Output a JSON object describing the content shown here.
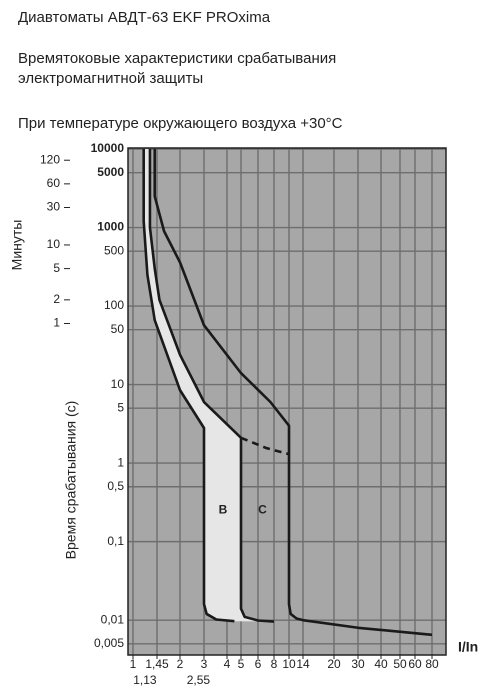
{
  "chart_data": {
    "type": "line",
    "title": "Диавтоматы АВДТ-63 EKF PROxima",
    "subtitle": [
      "Времятоковые характеристики срабатывания",
      "электромагнитной защиты"
    ],
    "note": "При температуре окружающего воздуха +30°C",
    "ylabel": "Время срабатывания (с)",
    "y2label": "Минуты",
    "xlabel": "I/In",
    "annotations": [
      {
        "text": "B",
        "x": 3.8,
        "y": 0.25
      },
      {
        "text": "C",
        "x": 6.5,
        "y": 0.25
      }
    ],
    "log_y": true,
    "grid": true,
    "background": "#a7a7a7",
    "fill_color": "#e6e6e6",
    "ylim": [
      0.0036,
      10300
    ],
    "yticks": [
      10000,
      5000,
      1000,
      500,
      100,
      50,
      10,
      5,
      1,
      {
        "value": 0.5,
        "label": "0,5"
      },
      {
        "value": 0.1,
        "label": "0,1"
      },
      {
        "value": 0.01,
        "label": "0,01"
      },
      {
        "value": 0.005,
        "label": "0,005"
      }
    ],
    "y2lim": [
      6e-05,
      171.7
    ],
    "y2ticks": [
      120,
      60,
      30,
      10,
      5,
      2,
      1
    ],
    "xticks": [
      1,
      {
        "value": 1.45,
        "label": "1,45"
      },
      2,
      3,
      4,
      5,
      6,
      8,
      10,
      14,
      20,
      30,
      40,
      50,
      60,
      80
    ],
    "xtick_notes": [
      {
        "value": 1.13,
        "label": "1,13"
      },
      {
        "value": 2.55,
        "label": "2,55"
      }
    ],
    "series": [
      {
        "color": "#1a1a1a",
        "x": [
          1.18,
          1.18,
          1.25,
          1.4,
          2,
          3,
          3,
          3.1,
          3.5,
          4.5
        ],
        "values": [
          10000,
          1200,
          250,
          66,
          8.5,
          2.8,
          0.016,
          0.012,
          0.0102,
          0.0097
        ]
      },
      {
        "color": "#1a1a1a",
        "x": [
          1.3,
          1.3,
          1.4,
          1.5,
          2,
          3,
          5,
          5,
          5.2,
          6,
          8
        ],
        "values": [
          10000,
          1000,
          300,
          120,
          24,
          6,
          2.1,
          0.014,
          0.011,
          0.0099,
          0.0096
        ]
      },
      {
        "color": "#1a1a1a",
        "dashed": true,
        "x": [
          5,
          7,
          10
        ],
        "values": [
          2.1,
          1.55,
          1.3
        ]
      },
      {
        "color": "#1a1a1a",
        "x": [
          1.4,
          1.4,
          1.6,
          2,
          3,
          5,
          7.5,
          10,
          10,
          10.4,
          12,
          14,
          30,
          80
        ],
        "values": [
          10000,
          2500,
          900,
          360,
          57,
          14,
          6,
          3,
          0.016,
          0.012,
          0.0105,
          0.01,
          0.008,
          0.0065
        ]
      }
    ]
  }
}
